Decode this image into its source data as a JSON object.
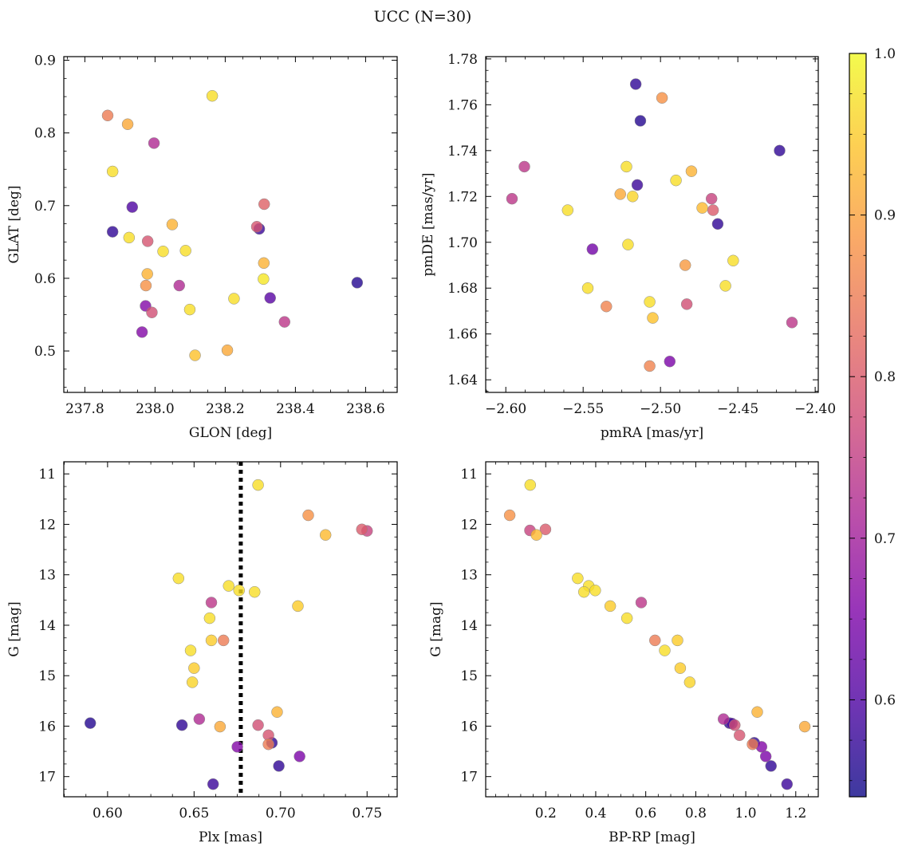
{
  "figure": {
    "title": "UCC (N=30)",
    "colorbar": {
      "colormap": "plasma",
      "range": [
        0.54,
        1.0
      ],
      "ticks": [
        0.6,
        0.7,
        0.8,
        0.9,
        1.0
      ],
      "tick_labels": [
        "0.6",
        "0.7",
        "0.8",
        "0.9",
        "1.0"
      ]
    },
    "marker_edge_color": "#888888"
  },
  "chart_data": [
    {
      "type": "scatter",
      "xlabel": "GLON [deg]",
      "ylabel": "GLAT [deg]",
      "xlim": [
        237.74,
        238.69
      ],
      "ylim": [
        0.443,
        0.905
      ],
      "xticks": [
        237.8,
        238.0,
        238.2,
        238.4,
        238.6
      ],
      "xtick_labels": [
        "237.8",
        "238.0",
        "238.2",
        "238.4",
        "238.6"
      ],
      "yticks": [
        0.5,
        0.6,
        0.7,
        0.8,
        0.9
      ],
      "ytick_labels": [
        "0.5",
        "0.6",
        "0.7",
        "0.8",
        "0.9"
      ],
      "y_inverted": false,
      "vline": null,
      "points": [
        {
          "x": 237.865,
          "y": 0.824,
          "c": 0.85
        },
        {
          "x": 237.922,
          "y": 0.812,
          "c": 0.91
        },
        {
          "x": 237.997,
          "y": 0.786,
          "c": 0.72
        },
        {
          "x": 238.163,
          "y": 0.851,
          "c": 0.97
        },
        {
          "x": 237.879,
          "y": 0.747,
          "c": 0.97
        },
        {
          "x": 237.935,
          "y": 0.698,
          "c": 0.6
        },
        {
          "x": 237.879,
          "y": 0.664,
          "c": 0.57
        },
        {
          "x": 237.926,
          "y": 0.656,
          "c": 0.97
        },
        {
          "x": 237.979,
          "y": 0.651,
          "c": 0.79
        },
        {
          "x": 238.023,
          "y": 0.637,
          "c": 0.97
        },
        {
          "x": 238.049,
          "y": 0.674,
          "c": 0.92
        },
        {
          "x": 238.087,
          "y": 0.638,
          "c": 0.97
        },
        {
          "x": 237.978,
          "y": 0.606,
          "c": 0.92
        },
        {
          "x": 237.974,
          "y": 0.59,
          "c": 0.88
        },
        {
          "x": 238.069,
          "y": 0.59,
          "c": 0.72
        },
        {
          "x": 237.973,
          "y": 0.562,
          "c": 0.66
        },
        {
          "x": 237.991,
          "y": 0.553,
          "c": 0.78
        },
        {
          "x": 237.963,
          "y": 0.526,
          "c": 0.66
        },
        {
          "x": 238.099,
          "y": 0.557,
          "c": 0.97
        },
        {
          "x": 238.225,
          "y": 0.572,
          "c": 0.97
        },
        {
          "x": 238.114,
          "y": 0.494,
          "c": 0.94
        },
        {
          "x": 238.206,
          "y": 0.501,
          "c": 0.91
        },
        {
          "x": 238.311,
          "y": 0.702,
          "c": 0.81
        },
        {
          "x": 238.29,
          "y": 0.671,
          "c": 0.79
        },
        {
          "x": 238.297,
          "y": 0.668,
          "c": 0.58
        },
        {
          "x": 238.31,
          "y": 0.621,
          "c": 0.92
        },
        {
          "x": 238.309,
          "y": 0.599,
          "c": 0.98
        },
        {
          "x": 238.328,
          "y": 0.573,
          "c": 0.61
        },
        {
          "x": 238.369,
          "y": 0.54,
          "c": 0.74
        },
        {
          "x": 238.576,
          "y": 0.594,
          "c": 0.56
        }
      ]
    },
    {
      "type": "scatter",
      "xlabel": "pmRA [mas/yr]",
      "ylabel": "pmDE [mas/yr]",
      "xlim": [
        -2.613,
        -2.398
      ],
      "ylim": [
        1.6345,
        1.781
      ],
      "xticks": [
        -2.6,
        -2.55,
        -2.5,
        -2.45,
        -2.4
      ],
      "xtick_labels": [
        "−2.60",
        "−2.55",
        "−2.50",
        "−2.45",
        "−2.40"
      ],
      "yticks": [
        1.64,
        1.66,
        1.68,
        1.7,
        1.72,
        1.74,
        1.76,
        1.78
      ],
      "ytick_labels": [
        "1.64",
        "1.66",
        "1.68",
        "1.70",
        "1.72",
        "1.74",
        "1.76",
        "1.78"
      ],
      "y_inverted": false,
      "vline": null,
      "points": [
        {
          "x": -2.516,
          "y": 1.769,
          "c": 0.57
        },
        {
          "x": -2.499,
          "y": 1.763,
          "c": 0.88
        },
        {
          "x": -2.513,
          "y": 1.753,
          "c": 0.56
        },
        {
          "x": -2.423,
          "y": 1.74,
          "c": 0.57
        },
        {
          "x": -2.588,
          "y": 1.733,
          "c": 0.74
        },
        {
          "x": -2.522,
          "y": 1.733,
          "c": 0.97
        },
        {
          "x": -2.48,
          "y": 1.731,
          "c": 0.92
        },
        {
          "x": -2.49,
          "y": 1.727,
          "c": 0.97
        },
        {
          "x": -2.515,
          "y": 1.725,
          "c": 0.58
        },
        {
          "x": -2.526,
          "y": 1.721,
          "c": 0.91
        },
        {
          "x": -2.518,
          "y": 1.72,
          "c": 0.96
        },
        {
          "x": -2.596,
          "y": 1.719,
          "c": 0.74
        },
        {
          "x": -2.467,
          "y": 1.719,
          "c": 0.76
        },
        {
          "x": -2.473,
          "y": 1.715,
          "c": 0.93
        },
        {
          "x": -2.466,
          "y": 1.714,
          "c": 0.8
        },
        {
          "x": -2.56,
          "y": 1.714,
          "c": 0.97
        },
        {
          "x": -2.463,
          "y": 1.708,
          "c": 0.57
        },
        {
          "x": -2.521,
          "y": 1.699,
          "c": 0.97
        },
        {
          "x": -2.544,
          "y": 1.697,
          "c": 0.64
        },
        {
          "x": -2.453,
          "y": 1.692,
          "c": 0.97
        },
        {
          "x": -2.484,
          "y": 1.69,
          "c": 0.89
        },
        {
          "x": -2.458,
          "y": 1.681,
          "c": 0.97
        },
        {
          "x": -2.547,
          "y": 1.68,
          "c": 0.97
        },
        {
          "x": -2.507,
          "y": 1.674,
          "c": 0.97
        },
        {
          "x": -2.483,
          "y": 1.673,
          "c": 0.78
        },
        {
          "x": -2.535,
          "y": 1.672,
          "c": 0.86
        },
        {
          "x": -2.505,
          "y": 1.667,
          "c": 0.94
        },
        {
          "x": -2.415,
          "y": 1.665,
          "c": 0.74
        },
        {
          "x": -2.494,
          "y": 1.648,
          "c": 0.65
        },
        {
          "x": -2.507,
          "y": 1.646,
          "c": 0.86
        }
      ]
    },
    {
      "type": "scatter",
      "xlabel": "Plx [mas]",
      "ylabel": "G [mag]",
      "xlim": [
        0.5747,
        0.7674
      ],
      "ylim": [
        10.76,
        17.4
      ],
      "xticks": [
        0.6,
        0.65,
        0.7,
        0.75
      ],
      "xtick_labels": [
        "0.60",
        "0.65",
        "0.70",
        "0.75"
      ],
      "yticks": [
        11,
        12,
        13,
        14,
        15,
        16,
        17
      ],
      "ytick_labels": [
        "11",
        "12",
        "13",
        "14",
        "15",
        "16",
        "17"
      ],
      "y_inverted": true,
      "vline": 0.677,
      "points": [
        {
          "x": 0.687,
          "y": 11.22,
          "c": 0.97
        },
        {
          "x": 0.716,
          "y": 11.82,
          "c": 0.88
        },
        {
          "x": 0.747,
          "y": 12.1,
          "c": 0.8
        },
        {
          "x": 0.75,
          "y": 12.13,
          "c": 0.76
        },
        {
          "x": 0.726,
          "y": 12.21,
          "c": 0.93
        },
        {
          "x": 0.641,
          "y": 13.07,
          "c": 0.97
        },
        {
          "x": 0.67,
          "y": 13.22,
          "c": 0.97
        },
        {
          "x": 0.676,
          "y": 13.31,
          "c": 0.97
        },
        {
          "x": 0.685,
          "y": 13.34,
          "c": 0.97
        },
        {
          "x": 0.66,
          "y": 13.55,
          "c": 0.74
        },
        {
          "x": 0.71,
          "y": 13.62,
          "c": 0.95
        },
        {
          "x": 0.659,
          "y": 13.86,
          "c": 0.97
        },
        {
          "x": 0.66,
          "y": 14.3,
          "c": 0.95
        },
        {
          "x": 0.667,
          "y": 14.3,
          "c": 0.85
        },
        {
          "x": 0.648,
          "y": 14.5,
          "c": 0.97
        },
        {
          "x": 0.65,
          "y": 14.85,
          "c": 0.95
        },
        {
          "x": 0.649,
          "y": 15.13,
          "c": 0.96
        },
        {
          "x": 0.698,
          "y": 15.72,
          "c": 0.92
        },
        {
          "x": 0.653,
          "y": 15.86,
          "c": 0.72
        },
        {
          "x": 0.59,
          "y": 15.94,
          "c": 0.56
        },
        {
          "x": 0.643,
          "y": 15.98,
          "c": 0.57
        },
        {
          "x": 0.687,
          "y": 15.98,
          "c": 0.78
        },
        {
          "x": 0.665,
          "y": 16.01,
          "c": 0.91
        },
        {
          "x": 0.693,
          "y": 16.18,
          "c": 0.79
        },
        {
          "x": 0.695,
          "y": 16.33,
          "c": 0.57
        },
        {
          "x": 0.693,
          "y": 16.36,
          "c": 0.85
        },
        {
          "x": 0.675,
          "y": 16.41,
          "c": 0.66
        },
        {
          "x": 0.711,
          "y": 16.6,
          "c": 0.65
        },
        {
          "x": 0.699,
          "y": 16.79,
          "c": 0.57
        },
        {
          "x": 0.661,
          "y": 17.15,
          "c": 0.58
        }
      ]
    },
    {
      "type": "scatter",
      "xlabel": "BP-RP [mag]",
      "ylabel": "G [mag]",
      "xlim": [
        -0.04,
        1.29
      ],
      "ylim": [
        10.76,
        17.4
      ],
      "xticks": [
        0.2,
        0.4,
        0.6,
        0.8,
        1.0,
        1.2
      ],
      "xtick_labels": [
        "0.2",
        "0.4",
        "0.6",
        "0.8",
        "1.0",
        "1.2"
      ],
      "yticks": [
        11,
        12,
        13,
        14,
        15,
        16,
        17
      ],
      "ytick_labels": [
        "11",
        "12",
        "13",
        "14",
        "15",
        "16",
        "17"
      ],
      "y_inverted": true,
      "vline": null,
      "points": [
        {
          "x": 0.138,
          "y": 11.22,
          "c": 0.97
        },
        {
          "x": 0.056,
          "y": 11.82,
          "c": 0.88
        },
        {
          "x": 0.137,
          "y": 12.12,
          "c": 0.76
        },
        {
          "x": 0.199,
          "y": 12.1,
          "c": 0.8
        },
        {
          "x": 0.163,
          "y": 12.21,
          "c": 0.93
        },
        {
          "x": 0.328,
          "y": 13.07,
          "c": 0.97
        },
        {
          "x": 0.372,
          "y": 13.22,
          "c": 0.97
        },
        {
          "x": 0.353,
          "y": 13.34,
          "c": 0.97
        },
        {
          "x": 0.398,
          "y": 13.31,
          "c": 0.97
        },
        {
          "x": 0.582,
          "y": 13.55,
          "c": 0.74
        },
        {
          "x": 0.458,
          "y": 13.62,
          "c": 0.95
        },
        {
          "x": 0.525,
          "y": 13.86,
          "c": 0.97
        },
        {
          "x": 0.637,
          "y": 14.3,
          "c": 0.85
        },
        {
          "x": 0.727,
          "y": 14.3,
          "c": 0.95
        },
        {
          "x": 0.676,
          "y": 14.5,
          "c": 0.97
        },
        {
          "x": 0.738,
          "y": 14.85,
          "c": 0.95
        },
        {
          "x": 0.776,
          "y": 15.13,
          "c": 0.96
        },
        {
          "x": 1.046,
          "y": 15.72,
          "c": 0.92
        },
        {
          "x": 0.911,
          "y": 15.86,
          "c": 0.72
        },
        {
          "x": 0.935,
          "y": 15.94,
          "c": 0.56
        },
        {
          "x": 0.956,
          "y": 15.98,
          "c": 0.78
        },
        {
          "x": 0.945,
          "y": 15.95,
          "c": 0.6
        },
        {
          "x": 1.236,
          "y": 16.01,
          "c": 0.91
        },
        {
          "x": 0.975,
          "y": 16.18,
          "c": 0.79
        },
        {
          "x": 1.034,
          "y": 16.33,
          "c": 0.57
        },
        {
          "x": 1.027,
          "y": 16.36,
          "c": 0.85
        },
        {
          "x": 1.063,
          "y": 16.41,
          "c": 0.66
        },
        {
          "x": 1.08,
          "y": 16.6,
          "c": 0.65
        },
        {
          "x": 1.101,
          "y": 16.79,
          "c": 0.57
        },
        {
          "x": 1.165,
          "y": 17.15,
          "c": 0.58
        }
      ]
    }
  ]
}
